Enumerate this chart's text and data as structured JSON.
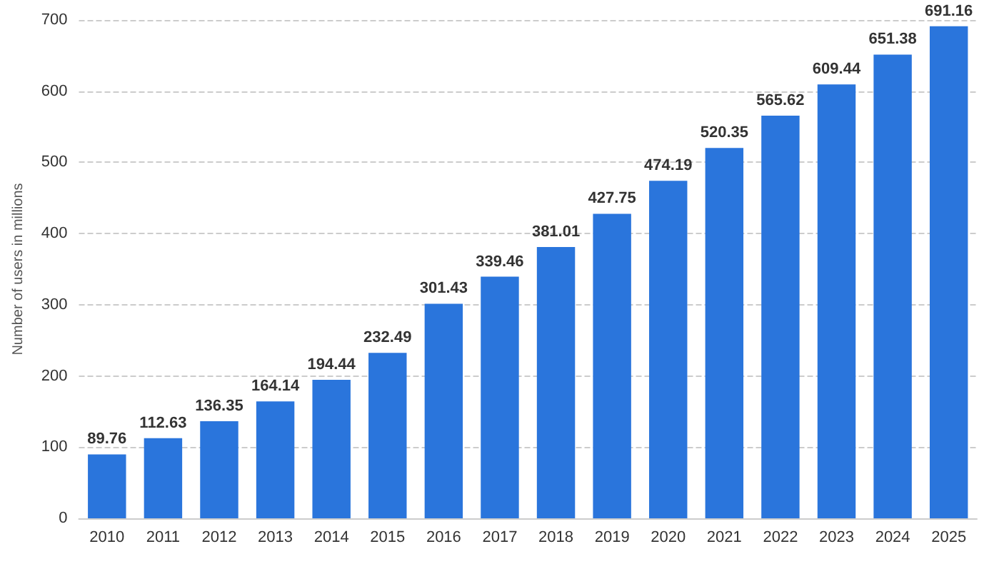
{
  "chart_data": {
    "type": "bar",
    "ylabel": "Number of users in millions",
    "categories": [
      "2010",
      "2011",
      "2012",
      "2013",
      "2014",
      "2015",
      "2016",
      "2017",
      "2018",
      "2019",
      "2020",
      "2021",
      "2022",
      "2023",
      "2024",
      "2025"
    ],
    "values": [
      89.76,
      112.63,
      136.35,
      164.14,
      194.44,
      232.49,
      301.43,
      339.46,
      381.01,
      427.75,
      474.19,
      520.35,
      565.62,
      609.44,
      651.38,
      691.16
    ],
    "color": "#2a75dc",
    "ylim": [
      0,
      700
    ],
    "yticks": [
      0,
      100,
      200,
      300,
      400,
      500,
      600,
      700
    ],
    "grid": "y",
    "data_labels": true
  }
}
